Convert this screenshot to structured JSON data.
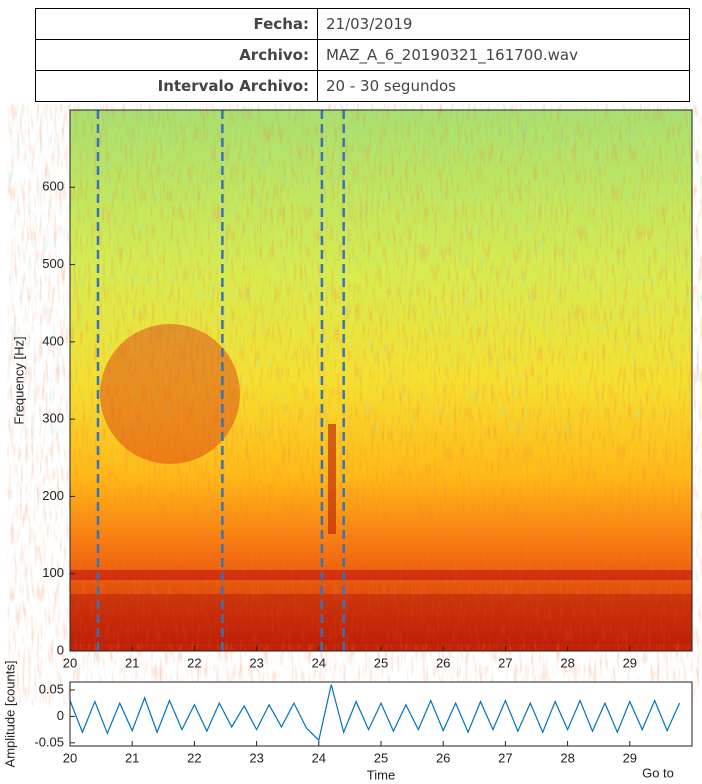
{
  "table": {
    "rows": [
      [
        "Fecha:",
        "21/03/2019"
      ],
      [
        "Archivo:",
        "MAZ_A_6_20190321_161700.wav"
      ],
      [
        "Intervalo Archivo:",
        "20 - 30 segundos"
      ]
    ]
  },
  "chart_data": [
    {
      "type": "spectrogram",
      "ylabel": "Frequency [Hz]",
      "xlim": [
        20,
        30
      ],
      "ylim": [
        0,
        700
      ],
      "xticks": [
        20,
        21,
        22,
        23,
        24,
        25,
        26,
        27,
        28,
        29
      ],
      "yticks": [
        0,
        100,
        200,
        300,
        400,
        500,
        600
      ],
      "markers": [
        20.45,
        22.45,
        24.05,
        24.4
      ],
      "marker_color": "#3a72b8"
    },
    {
      "type": "line",
      "ylabel": "Amplitude [counts]",
      "xlabel": "Time",
      "xlim": [
        20,
        30
      ],
      "ylim": [
        -0.056,
        0.065
      ],
      "xticks": [
        20,
        21,
        22,
        23,
        24,
        25,
        26,
        27,
        28,
        29
      ],
      "yticks": [
        0.05,
        0,
        -0.05
      ],
      "series": [
        {
          "color": "#0072bd",
          "x": [
            20,
            20.2,
            20.4,
            20.6,
            20.8,
            21,
            21.2,
            21.4,
            21.6,
            21.8,
            22,
            22.2,
            22.4,
            22.6,
            22.8,
            23,
            23.2,
            23.4,
            23.6,
            23.8,
            24,
            24.2,
            24.4,
            24.6,
            24.8,
            25,
            25.2,
            25.4,
            25.6,
            25.8,
            26,
            26.2,
            26.4,
            26.6,
            26.8,
            27,
            27.2,
            27.4,
            27.6,
            27.8,
            28,
            28.2,
            28.4,
            28.6,
            28.8,
            29,
            29.2,
            29.4,
            29.6,
            29.8
          ],
          "values": [
            0.03,
            -0.03,
            0.028,
            -0.032,
            0.025,
            -0.027,
            0.035,
            -0.03,
            0.03,
            -0.025,
            0.022,
            -0.028,
            0.025,
            -0.02,
            0.02,
            -0.025,
            0.022,
            -0.02,
            0.025,
            -0.022,
            -0.045,
            0.06,
            -0.03,
            0.028,
            -0.025,
            0.025,
            -0.028,
            0.022,
            -0.025,
            0.03,
            -0.027,
            0.025,
            -0.03,
            0.028,
            -0.025,
            0.03,
            -0.028,
            0.025,
            -0.03,
            0.028,
            -0.025,
            0.03,
            -0.028,
            0.025,
            -0.03,
            0.028,
            -0.025,
            0.03,
            -0.027,
            0.025
          ]
        }
      ]
    }
  ],
  "button": "Go to"
}
